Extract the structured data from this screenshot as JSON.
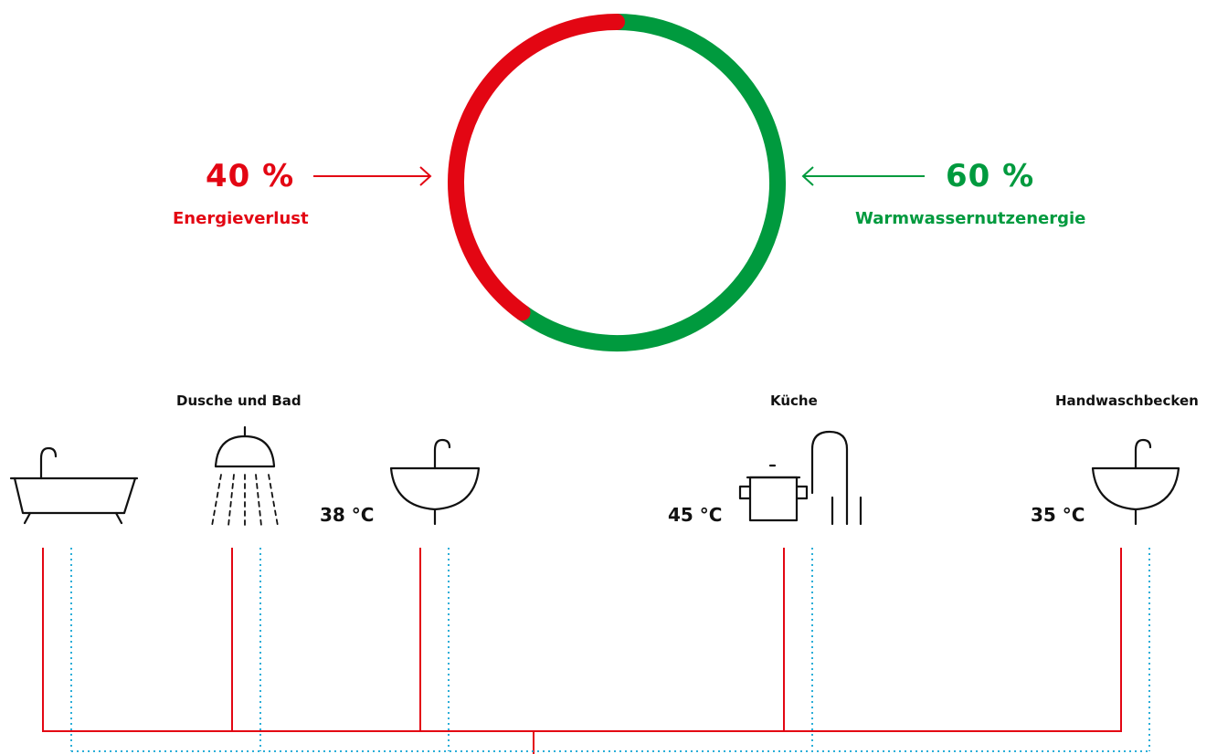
{
  "colors": {
    "loss": "#e30613",
    "useful": "#009a3e",
    "pipe_hot": "#e30613",
    "pipe_cold": "#2aaed8",
    "icon": "#111111"
  },
  "energy": {
    "loss": {
      "value": 40,
      "text": "40 %",
      "label": "Energieverlust"
    },
    "useful": {
      "value": 60,
      "text": "60 %",
      "label": "Warmwassernutzenergie"
    }
  },
  "locations": {
    "dusche_bad": "Dusche und Bad",
    "kueche": "Küche",
    "handwaschbecken": "Handwaschbecken"
  },
  "temperatures": {
    "bad_waschbecken": "38 °C",
    "kueche": "45 °C",
    "handwaschbecken": "35 °C"
  },
  "icons": [
    "bathtub-icon",
    "shower-icon",
    "washbasin-icon",
    "cooking-pot-icon",
    "kitchen-faucet-icon",
    "washbasin-icon"
  ]
}
